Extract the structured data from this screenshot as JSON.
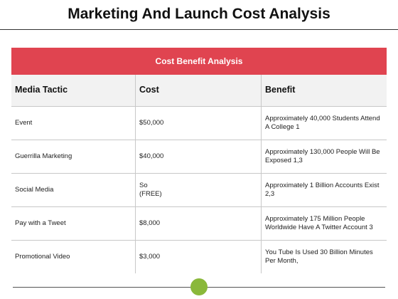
{
  "title": "Marketing And Launch Cost Analysis",
  "table": {
    "banner": "Cost Benefit Analysis",
    "headers": [
      "Media Tactic",
      "Cost",
      "Benefit"
    ],
    "rows": [
      {
        "tactic": "Event",
        "cost": "$50,000",
        "benefit": "Approximately 40,000 Students Attend A College 1"
      },
      {
        "tactic": "Guerrilla  Marketing",
        "cost": "$40,000",
        "benefit": "Approximately 130,000 People Will Be Exposed 1,3"
      },
      {
        "tactic": "Social Media",
        "cost": "So\n(FREE)",
        "benefit": "Approximately 1 Billion Accounts Exist 2,3"
      },
      {
        "tactic": "Pay with a Tweet",
        "cost": "$8,000",
        "benefit": "Approximately 175 Million People Worldwide Have A Twitter Account 3"
      },
      {
        "tactic": "Promotional Video",
        "cost": "$3,000",
        "benefit": "You Tube Is Used 30 Billion Minutes Per Month,"
      }
    ]
  },
  "colors": {
    "banner": "#e04450",
    "header_bg": "#f2f2f2",
    "accent_dot": "#8ab83a"
  }
}
